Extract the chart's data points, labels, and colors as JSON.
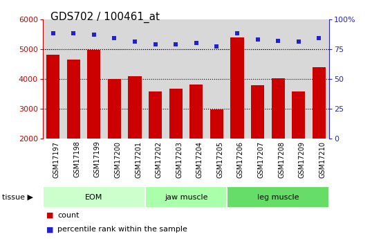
{
  "title": "GDS702 / 100461_at",
  "samples": [
    "GSM17197",
    "GSM17198",
    "GSM17199",
    "GSM17200",
    "GSM17201",
    "GSM17202",
    "GSM17203",
    "GSM17204",
    "GSM17205",
    "GSM17206",
    "GSM17207",
    "GSM17208",
    "GSM17209",
    "GSM17210"
  ],
  "counts": [
    4800,
    4650,
    4980,
    4000,
    4100,
    3580,
    3680,
    3820,
    2980,
    5380,
    3780,
    4020,
    3580,
    4380
  ],
  "percentiles": [
    88,
    88,
    87,
    84,
    81,
    79,
    79,
    80,
    77,
    88,
    83,
    82,
    81,
    84
  ],
  "groups": [
    {
      "label": "EOM",
      "start": 0,
      "end": 5
    },
    {
      "label": "jaw muscle",
      "start": 5,
      "end": 9
    },
    {
      "label": "leg muscle",
      "start": 9,
      "end": 14
    }
  ],
  "group_colors": [
    "#ccffcc",
    "#aaffaa",
    "#66dd66"
  ],
  "bar_color": "#cc0000",
  "dot_color": "#2222cc",
  "ylim_left": [
    2000,
    6000
  ],
  "ylim_right": [
    0,
    100
  ],
  "yticks_left": [
    2000,
    3000,
    4000,
    5000,
    6000
  ],
  "yticks_right": [
    0,
    25,
    50,
    75,
    100
  ],
  "grid_values": [
    3000,
    4000,
    5000
  ],
  "ylabel_left_color": "#cc0000",
  "ylabel_right_color": "#2222cc",
  "plot_bg_color": "#d8d8d8",
  "tick_bg_color": "#d0d0d0",
  "legend_count_label": "count",
  "legend_pct_label": "percentile rank within the sample",
  "title_fontsize": 11,
  "tick_fontsize": 7,
  "axis_fontsize": 8
}
